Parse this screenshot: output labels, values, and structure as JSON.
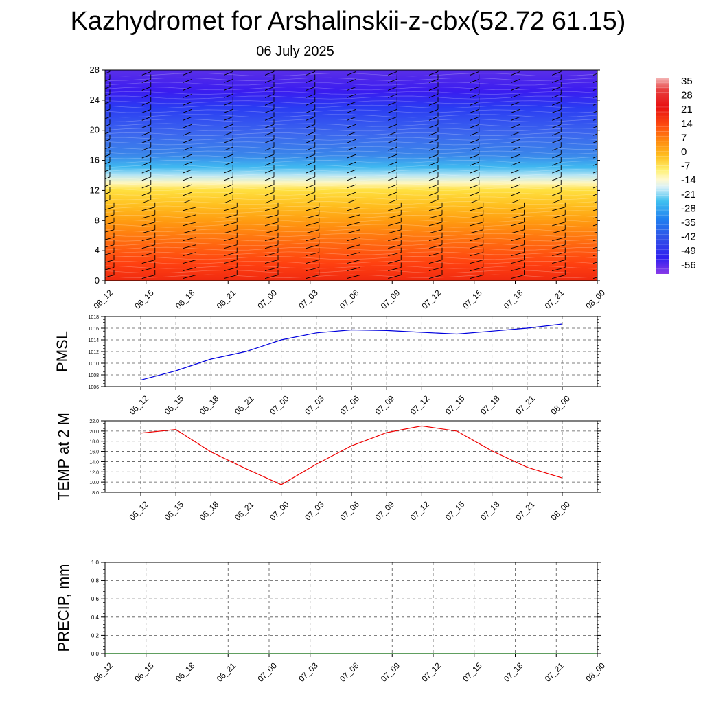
{
  "header": {
    "title": "Kazhydromet for Arshalinskii-z-cbx(52.72 61.15)",
    "date": "06 July 2025"
  },
  "colors": {
    "pmsl_line": "#0000dd",
    "temp_line": "#ee0000",
    "precip_line": "#006600",
    "grid": "#555555"
  },
  "chart_data": [
    {
      "type": "heatmap",
      "name": "cross-section",
      "x_tick_labels": [
        "06_12",
        "06_15",
        "06_18",
        "06_21",
        "07_00",
        "07_03",
        "07_06",
        "07_09",
        "07_12",
        "07_15",
        "07_18",
        "07_21",
        "08_00"
      ],
      "y_tick_labels": [
        "0",
        "4",
        "8",
        "12",
        "16",
        "20",
        "24",
        "28"
      ],
      "ylim": [
        0,
        28
      ],
      "colorbar": {
        "labels": [
          "35",
          "28",
          "21",
          "14",
          "7",
          "0",
          "-7",
          "-14",
          "-21",
          "-28",
          "-35",
          "-42",
          "-49",
          "-56"
        ],
        "range": [
          -60,
          39
        ]
      },
      "wind_barbs": true
    },
    {
      "type": "line",
      "name": "pmsl",
      "ylabel": "PMSL",
      "ylim": [
        1006,
        1018
      ],
      "y_tick_labels": [
        "1006",
        "1008",
        "1010",
        "1012",
        "1014",
        "1016",
        "1018"
      ],
      "x_tick_labels": [
        "06_12",
        "06_15",
        "06_18",
        "06_21",
        "07_00",
        "07_03",
        "07_06",
        "07_09",
        "07_12",
        "07_15",
        "07_18",
        "07_21",
        "08_00"
      ],
      "values": [
        1007.1,
        1008.7,
        1010.7,
        1012.0,
        1014.0,
        1015.2,
        1015.7,
        1015.6,
        1015.3,
        1015.0,
        1015.5,
        1016.0,
        1016.7
      ],
      "grid": true
    },
    {
      "type": "line",
      "name": "temp2m",
      "ylabel": "TEMP at 2 M",
      "ylim": [
        8.0,
        22.0
      ],
      "y_tick_labels": [
        "8.0",
        "10.0",
        "12.0",
        "14.0",
        "16.0",
        "18.0",
        "20.0",
        "22.0"
      ],
      "x_tick_labels": [
        "06_12",
        "06_15",
        "06_18",
        "06_21",
        "07_00",
        "07_03",
        "07_06",
        "07_09",
        "07_12",
        "07_15",
        "07_18",
        "07_21",
        "08_00"
      ],
      "values": [
        19.6,
        20.3,
        15.9,
        12.6,
        9.5,
        13.5,
        17.1,
        19.7,
        21.0,
        20.0,
        16.1,
        12.9,
        10.8
      ],
      "grid": true
    },
    {
      "type": "line",
      "name": "precip",
      "ylabel": "PRECIP, mm",
      "ylim": [
        0.0,
        1.0
      ],
      "y_tick_labels": [
        "0.0",
        "0.2",
        "0.4",
        "0.6",
        "0.8",
        "1.0"
      ],
      "x_tick_labels": [
        "06_12",
        "06_15",
        "06_18",
        "06_21",
        "07_00",
        "07_03",
        "07_06",
        "07_09",
        "07_12",
        "07_15",
        "07_18",
        "07_21",
        "08_00"
      ],
      "values": [
        0,
        0,
        0,
        0,
        0,
        0,
        0,
        0,
        0,
        0,
        0,
        0,
        0
      ],
      "grid": true
    }
  ]
}
